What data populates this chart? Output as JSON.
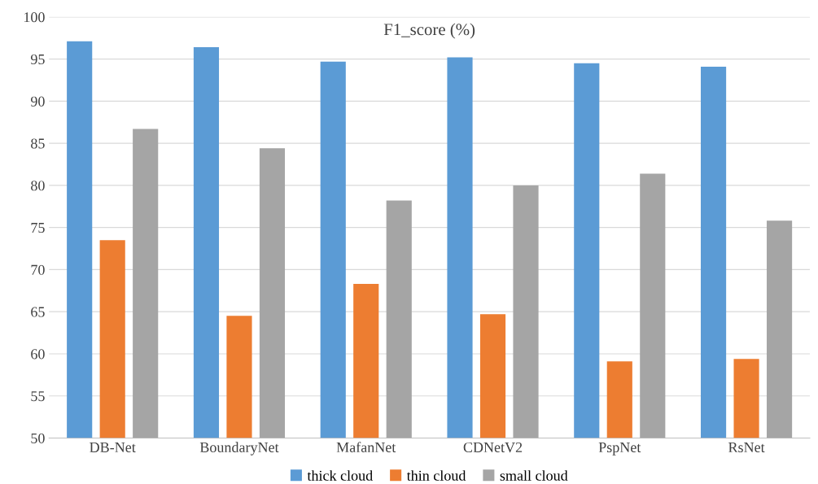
{
  "chart_data": {
    "type": "bar",
    "title": "F1_score (%)",
    "categories": [
      "DB-Net",
      "BoundaryNet",
      "MafanNet",
      "CDNetV2",
      "PspNet",
      "RsNet"
    ],
    "series": [
      {
        "name": "thick cloud",
        "color": "#5b9bd5",
        "values": [
          97.1,
          96.4,
          94.7,
          95.2,
          94.5,
          94.1
        ]
      },
      {
        "name": "thin cloud",
        "color": "#ed7d31",
        "values": [
          73.5,
          64.5,
          68.3,
          64.7,
          59.1,
          59.4
        ]
      },
      {
        "name": "small cloud",
        "color": "#a5a5a5",
        "values": [
          86.7,
          84.4,
          78.2,
          80.0,
          81.4,
          75.8
        ]
      }
    ],
    "ylim": [
      50,
      100
    ],
    "yticks": [
      50,
      55,
      60,
      65,
      70,
      75,
      80,
      85,
      90,
      95,
      100
    ],
    "grid": "y",
    "legend": "bottom"
  }
}
